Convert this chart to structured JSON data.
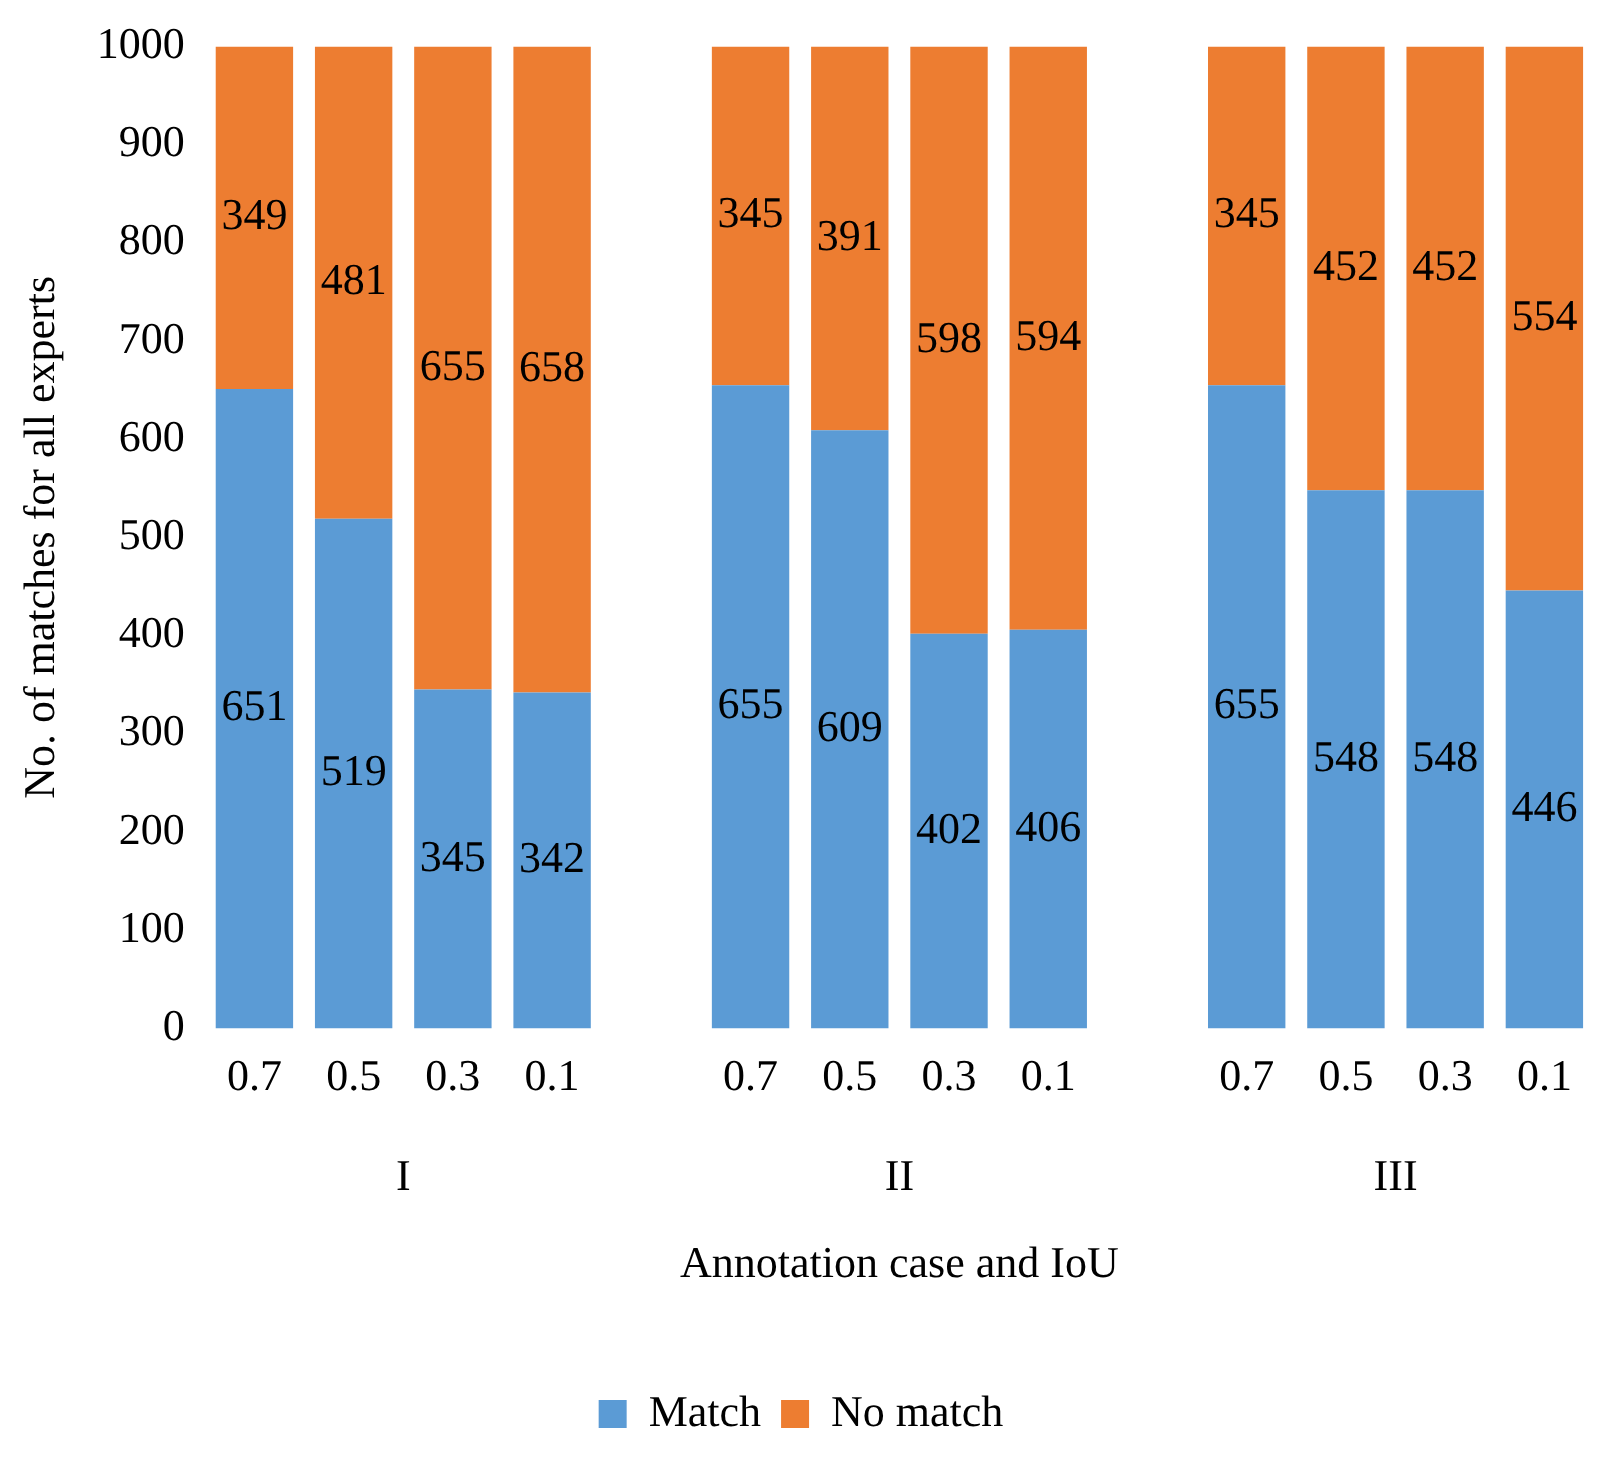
{
  "chart_data": {
    "type": "bar",
    "stacked": true,
    "xlabel": "Annotation case and IoU",
    "ylabel": "No. of matches for all experts",
    "categories": [
      "0.7",
      "0.5",
      "0.3",
      "0.1",
      null,
      "0.7",
      "0.5",
      "0.3",
      "0.1",
      null,
      "0.7",
      "0.5",
      "0.3",
      "0.1"
    ],
    "series": [
      {
        "name": "Match",
        "color": "#5b9bd5",
        "values": [
          651,
          519,
          345,
          342,
          null,
          655,
          609,
          402,
          406,
          null,
          655,
          548,
          548,
          446
        ]
      },
      {
        "name": "No match",
        "color": "#ed7d31",
        "values": [
          349,
          481,
          655,
          658,
          null,
          345,
          391,
          598,
          594,
          null,
          345,
          452,
          452,
          554
        ]
      }
    ],
    "annotations": [
      "I",
      "II",
      "III"
    ],
    "ylim": [
      0,
      1000
    ],
    "yticks": [
      0,
      100,
      200,
      300,
      400,
      500,
      600,
      700,
      800,
      900,
      1000
    ],
    "grid": false,
    "legend": "bottom",
    "data_labels": true
  }
}
